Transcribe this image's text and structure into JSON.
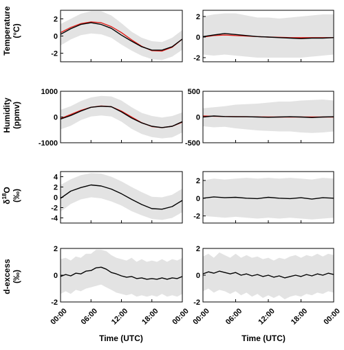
{
  "colors": {
    "observed": "#000000",
    "model": "#e0201b",
    "band": "#e3e3e3"
  },
  "panel_labels": {
    "temperature": [
      "Temperature",
      "(°C)"
    ],
    "humidity": [
      "Humidity",
      "(ppmv)"
    ],
    "d18o": [
      "δ",
      "18",
      "O",
      "(‰)"
    ],
    "dexcess": [
      "d-excess",
      "(‰)"
    ]
  },
  "x_axis": {
    "label": "Time (UTC)",
    "ticks": [
      "00:00",
      "06:00",
      "12:00",
      "18:00",
      "00:00"
    ]
  },
  "chart_data": [
    {
      "type": "line",
      "id": "temp-left",
      "ylim": [
        -3,
        3
      ],
      "yticks": [
        "-2",
        "0",
        "2"
      ],
      "ytick_values": [
        -2,
        0,
        2
      ],
      "x": [
        0,
        2,
        4,
        6,
        8,
        10,
        12,
        14,
        16,
        18,
        20,
        22,
        24
      ],
      "series": [
        {
          "values": [
            0.2,
            0.85,
            1.35,
            1.55,
            1.35,
            0.9,
            0.1,
            -0.6,
            -1.25,
            -1.65,
            -1.65,
            -1.25,
            -0.35
          ],
          "color": "observed"
        },
        {
          "values": [
            0.4,
            1.0,
            1.45,
            1.65,
            1.55,
            1.1,
            0.4,
            -0.45,
            -1.2,
            -1.7,
            -1.75,
            -1.3,
            -0.35
          ],
          "color": "model"
        }
      ],
      "band": {
        "lower": [
          -1.1,
          -0.4,
          0.1,
          0.3,
          0.2,
          -0.2,
          -1.0,
          -1.7,
          -2.3,
          -2.7,
          -2.8,
          -2.4,
          -1.6
        ],
        "upper": [
          1.4,
          2.0,
          2.6,
          2.9,
          2.9,
          2.4,
          1.5,
          0.5,
          -0.2,
          -0.6,
          -0.7,
          -0.2,
          0.7
        ]
      }
    },
    {
      "type": "line",
      "id": "temp-right",
      "ylim": [
        -2.4,
        2.6
      ],
      "yticks": [
        "-2",
        "0",
        "2"
      ],
      "ytick_values": [
        -2,
        0,
        2
      ],
      "x": [
        0,
        2,
        4,
        6,
        8,
        10,
        12,
        14,
        16,
        18,
        20,
        22,
        24
      ],
      "series": [
        {
          "values": [
            0.05,
            0.2,
            0.35,
            0.25,
            0.15,
            0.05,
            0.0,
            -0.05,
            -0.1,
            -0.15,
            -0.1,
            -0.1,
            -0.05
          ],
          "color": "observed"
        },
        {
          "values": [
            0.0,
            0.15,
            0.2,
            0.15,
            0.1,
            0.05,
            0.0,
            -0.02,
            -0.05,
            -0.05,
            -0.05,
            -0.05,
            -0.05
          ],
          "color": "model"
        }
      ],
      "band": {
        "lower": [
          -1.7,
          -1.8,
          -1.7,
          -1.8,
          -1.9,
          -2.0,
          -2.0,
          -2.0,
          -2.0,
          -2.0,
          -1.9,
          -1.8,
          -1.7
        ],
        "upper": [
          2.0,
          2.2,
          2.3,
          2.3,
          2.1,
          1.9,
          1.9,
          1.8,
          1.9,
          2.0,
          2.1,
          2.2,
          2.2
        ]
      }
    },
    {
      "type": "line",
      "id": "hum-left",
      "ylim": [
        -1000,
        1000
      ],
      "yticks": [
        "-1000",
        "0",
        "1000"
      ],
      "ytick_values": [
        -1000,
        0,
        1000
      ],
      "x": [
        0,
        2,
        4,
        6,
        8,
        10,
        12,
        14,
        16,
        18,
        20,
        22,
        24
      ],
      "series": [
        {
          "values": [
            -80,
            60,
            230,
            380,
            420,
            400,
            200,
            -40,
            -230,
            -360,
            -410,
            -360,
            -180
          ],
          "color": "observed"
        },
        {
          "values": [
            -60,
            100,
            260,
            380,
            430,
            400,
            230,
            0,
            -220,
            -370,
            -410,
            -360,
            -200
          ],
          "color": "model"
        }
      ],
      "band": {
        "lower": [
          -480,
          -340,
          -120,
          20,
          60,
          20,
          -180,
          -460,
          -660,
          -780,
          -830,
          -790,
          -600
        ],
        "upper": [
          280,
          420,
          620,
          760,
          820,
          800,
          640,
          380,
          160,
          40,
          -20,
          40,
          180
        ]
      }
    },
    {
      "type": "line",
      "id": "hum-right",
      "ylim": [
        -500,
        500
      ],
      "yticks": [
        "-500",
        "0",
        "500"
      ],
      "ytick_values": [
        -500,
        0,
        500
      ],
      "x": [
        0,
        2,
        4,
        6,
        8,
        10,
        12,
        14,
        16,
        18,
        20,
        22,
        24
      ],
      "series": [
        {
          "values": [
            0,
            20,
            10,
            5,
            5,
            0,
            -5,
            0,
            5,
            0,
            -10,
            0,
            5
          ],
          "color": "observed"
        },
        {
          "values": [
            20,
            15,
            10,
            8,
            5,
            2,
            0,
            0,
            0,
            0,
            0,
            0,
            0
          ],
          "color": "model"
        }
      ],
      "band": {
        "lower": [
          -180,
          -200,
          -190,
          -220,
          -240,
          -260,
          -270,
          -280,
          -280,
          -300,
          -310,
          -300,
          -280
        ],
        "upper": [
          170,
          190,
          210,
          240,
          250,
          260,
          280,
          300,
          300,
          320,
          330,
          340,
          320
        ]
      }
    },
    {
      "type": "line",
      "id": "d18o-left",
      "ylim": [
        -5,
        5
      ],
      "yticks": [
        "-4",
        "-2",
        "0",
        "2",
        "4"
      ],
      "ytick_values": [
        -4,
        -2,
        0,
        2,
        4
      ],
      "x": [
        0,
        2,
        4,
        6,
        8,
        10,
        12,
        14,
        16,
        18,
        20,
        22,
        24
      ],
      "series": [
        {
          "values": [
            -0.2,
            1.2,
            1.9,
            2.4,
            2.2,
            1.6,
            0.7,
            -0.4,
            -1.4,
            -2.2,
            -2.3,
            -1.8,
            -0.6
          ],
          "color": "observed"
        }
      ],
      "band": {
        "lower": [
          -2.8,
          -1.3,
          -0.4,
          0.0,
          -0.2,
          -0.8,
          -1.6,
          -2.7,
          -3.5,
          -4.2,
          -4.4,
          -4.0,
          -2.9
        ],
        "upper": [
          2.4,
          3.5,
          4.3,
          4.7,
          4.6,
          4.0,
          3.1,
          2.0,
          1.0,
          0.1,
          0.0,
          0.5,
          1.7
        ]
      }
    },
    {
      "type": "line",
      "id": "d18o-right",
      "ylim": [
        -2.8,
        3
      ],
      "yticks": [
        "-2",
        "0",
        "2"
      ],
      "ytick_values": [
        -2,
        0,
        2
      ],
      "x": [
        0,
        2,
        4,
        6,
        8,
        10,
        12,
        14,
        16,
        18,
        20,
        22,
        24
      ],
      "series": [
        {
          "values": [
            0.0,
            0.15,
            0.05,
            0.1,
            0.0,
            -0.05,
            0.1,
            0.0,
            -0.05,
            0.05,
            -0.1,
            0.05,
            0.0
          ],
          "color": "observed"
        }
      ],
      "band": {
        "lower": [
          -2.0,
          -2.1,
          -2.2,
          -2.1,
          -2.2,
          -2.3,
          -2.2,
          -2.3,
          -2.2,
          -2.3,
          -2.4,
          -2.3,
          -2.2
        ],
        "upper": [
          2.0,
          2.2,
          2.1,
          2.2,
          2.3,
          2.2,
          2.3,
          2.2,
          2.3,
          2.2,
          2.1,
          2.3,
          2.2
        ]
      }
    },
    {
      "type": "line",
      "id": "dex-left",
      "ylim": [
        -2,
        2
      ],
      "yticks": [
        "-2",
        "0",
        "2"
      ],
      "ytick_values": [
        -2,
        0,
        2
      ],
      "x": [
        0,
        1,
        2,
        3,
        4,
        5,
        6,
        7,
        8,
        9,
        10,
        11,
        12,
        13,
        14,
        15,
        16,
        17,
        18,
        19,
        20,
        21,
        22,
        23,
        24
      ],
      "series": [
        {
          "values": [
            -0.1,
            0.05,
            -0.05,
            0.15,
            0.1,
            0.3,
            0.35,
            0.55,
            0.6,
            0.45,
            0.2,
            0.1,
            -0.05,
            -0.15,
            -0.1,
            -0.25,
            -0.2,
            -0.3,
            -0.25,
            -0.3,
            -0.2,
            -0.3,
            -0.2,
            -0.25,
            -0.1
          ],
          "color": "observed"
        }
      ],
      "band": {
        "lower": [
          -1.4,
          -1.2,
          -1.4,
          -1.1,
          -1.2,
          -1.0,
          -0.9,
          -0.8,
          -0.7,
          -0.9,
          -1.1,
          -1.3,
          -1.4,
          -1.5,
          -1.4,
          -1.6,
          -1.5,
          -1.6,
          -1.5,
          -1.6,
          -1.4,
          -1.6,
          -1.5,
          -1.6,
          -1.4
        ],
        "upper": [
          1.2,
          1.3,
          1.1,
          1.4,
          1.3,
          1.6,
          1.6,
          1.9,
          1.9,
          1.8,
          1.5,
          1.3,
          1.2,
          1.1,
          1.3,
          1.0,
          1.2,
          1.0,
          1.1,
          1.0,
          1.2,
          1.0,
          1.2,
          1.1,
          1.3
        ]
      }
    },
    {
      "type": "line",
      "id": "dex-right",
      "ylim": [
        -2,
        2
      ],
      "yticks": [
        "-2",
        "0",
        "2"
      ],
      "ytick_values": [
        -2,
        0,
        2
      ],
      "x": [
        0,
        1,
        2,
        3,
        4,
        5,
        6,
        7,
        8,
        9,
        10,
        11,
        12,
        13,
        14,
        15,
        16,
        17,
        18,
        19,
        20,
        21,
        22,
        23,
        24
      ],
      "series": [
        {
          "values": [
            0.1,
            0.25,
            0.15,
            0.3,
            0.2,
            0.1,
            0.2,
            0.0,
            0.1,
            -0.05,
            0.05,
            -0.1,
            0.0,
            -0.15,
            -0.05,
            -0.2,
            -0.1,
            0.0,
            -0.1,
            0.05,
            -0.05,
            0.1,
            0.0,
            0.15,
            0.05
          ],
          "color": "observed"
        }
      ],
      "band": {
        "lower": [
          -1.2,
          -1.0,
          -1.3,
          -1.1,
          -1.2,
          -1.4,
          -1.2,
          -1.5,
          -1.3,
          -1.6,
          -1.4,
          -1.7,
          -1.5,
          -1.7,
          -1.5,
          -1.8,
          -1.6,
          -1.5,
          -1.6,
          -1.4,
          -1.5,
          -1.3,
          -1.4,
          -1.2,
          -1.3
        ],
        "upper": [
          1.4,
          1.6,
          1.3,
          1.7,
          1.5,
          1.3,
          1.6,
          1.3,
          1.5,
          1.3,
          1.4,
          1.2,
          1.3,
          1.1,
          1.3,
          1.2,
          1.4,
          1.5,
          1.3,
          1.5,
          1.4,
          1.6,
          1.4,
          1.6,
          1.5
        ]
      }
    }
  ]
}
